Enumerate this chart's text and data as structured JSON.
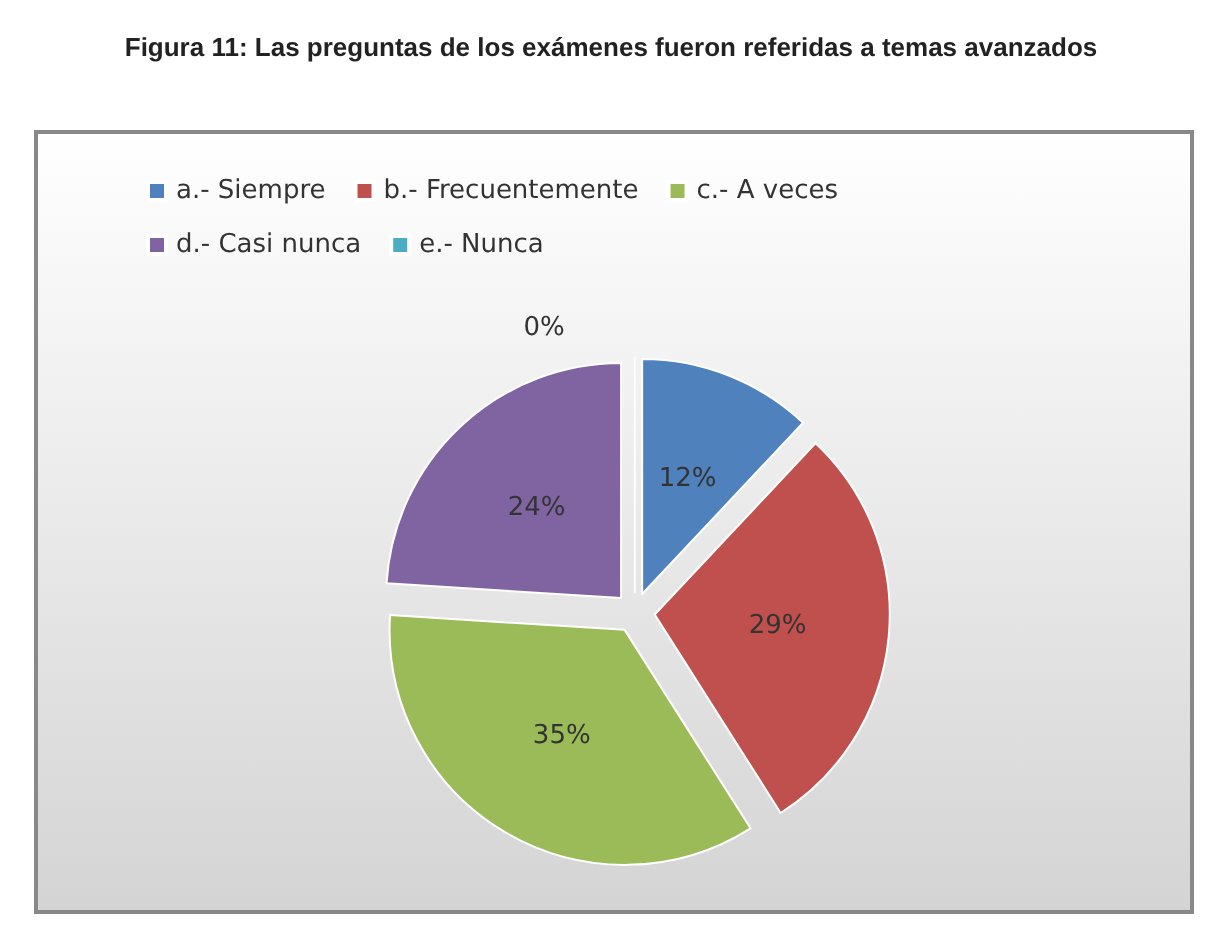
{
  "chart_data": {
    "type": "pie",
    "title": "Figura 11: Las preguntas de los exámenes fueron referidas a temas avanzados",
    "categories": [
      "a.- Siempre",
      "b.- Frecuentemente",
      "c.- A veces",
      "d.- Casi nunca",
      "e.- Nunca"
    ],
    "values": [
      12,
      29,
      35,
      24,
      0
    ],
    "colors": [
      "#4f81bd",
      "#c0504d",
      "#9bbb59",
      "#8064a2",
      "#4bacc6"
    ],
    "value_labels": [
      "12%",
      "29%",
      "35%",
      "24%",
      "0%"
    ],
    "legend": "top left"
  }
}
